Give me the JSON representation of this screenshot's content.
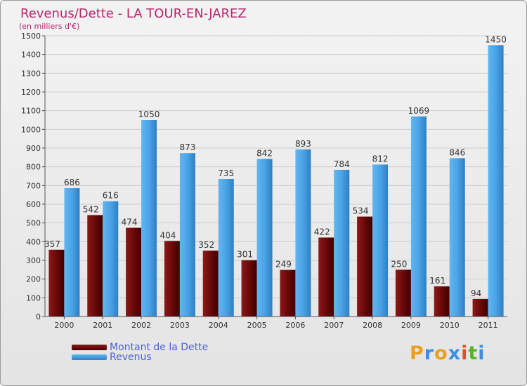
{
  "chart_data": {
    "type": "bar",
    "title": "Revenus/Dette - LA TOUR-EN-JAREZ",
    "subtitle": "(en milliers d'€)",
    "categories": [
      "2000",
      "2001",
      "2002",
      "2003",
      "2004",
      "2005",
      "2006",
      "2007",
      "2008",
      "2009",
      "2010",
      "2011"
    ],
    "series": [
      {
        "name": "Montant de la Dette",
        "color": "#7a0e0e",
        "values": [
          357,
          542,
          474,
          404,
          352,
          301,
          249,
          422,
          534,
          250,
          161,
          94
        ]
      },
      {
        "name": "Revenus",
        "color": "#4aa3e6",
        "values": [
          686,
          616,
          1050,
          873,
          735,
          842,
          893,
          784,
          812,
          1069,
          846,
          1450
        ]
      }
    ],
    "yticks": [
      "0",
      "100",
      "200",
      "300",
      "400",
      "500",
      "600",
      "700",
      "800",
      "900",
      "1000",
      "1100",
      "1200",
      "1300",
      "1400",
      "1500"
    ],
    "ylim": [
      0,
      1500
    ],
    "grid": true,
    "legend_position": "bottom-left",
    "title_color": "#b5266b"
  },
  "logo": {
    "letters": [
      "P",
      "r",
      "o",
      "x",
      "i",
      "t",
      "i"
    ],
    "colors": [
      "#e8a020",
      "#3a8fe0",
      "#e8a020",
      "#3a8fe0",
      "#e84b2a",
      "#5ab030",
      "#3a8fe0"
    ]
  }
}
